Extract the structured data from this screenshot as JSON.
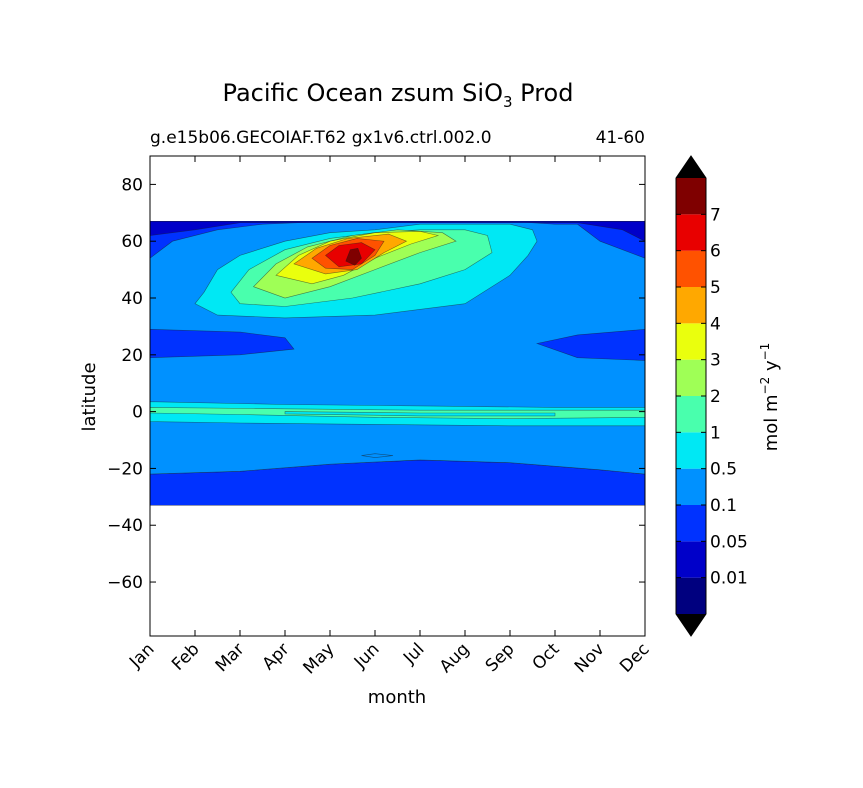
{
  "chart_data": {
    "type": "heatmap",
    "title": "Pacific Ocean zsum SiO",
    "title_subscript": "3",
    "title_suffix": " Prod",
    "subtitle_left": "g.e15b06.GECOIAF.T62 gx1v6.ctrl.002.0",
    "subtitle_right": "41-60",
    "xlabel": "month",
    "ylabel": "latitude",
    "x_ticks": [
      "Jan",
      "Feb",
      "Mar",
      "Apr",
      "May",
      "Jun",
      "Jul",
      "Aug",
      "Sep",
      "Oct",
      "Nov",
      "Dec"
    ],
    "y_ticks": [
      80,
      60,
      40,
      20,
      0,
      -20,
      -40,
      -60
    ],
    "y_tick_labels": [
      "80",
      "60",
      "40",
      "20",
      "0",
      "−20",
      "−40",
      "−60"
    ],
    "xlim": [
      0,
      11
    ],
    "ylim": [
      -79,
      90
    ],
    "data_lat_range": [
      -34,
      67
    ],
    "colorbar": {
      "label_main": "mol m",
      "label_exp1": "−2",
      "label_mid": " y",
      "label_exp2": "−1",
      "levels": [
        0,
        0.01,
        0.05,
        0.1,
        0.5,
        1,
        2,
        3,
        4,
        5,
        6,
        7,
        8
      ],
      "tick_labels": [
        "0.01",
        "0.05",
        "0.1",
        "0.5",
        "1",
        "2",
        "3",
        "4",
        "5",
        "6",
        "7"
      ],
      "colors": [
        "#00007f",
        "#0000c9",
        "#0032ff",
        "#0091ff",
        "#00e8f4",
        "#49ffad",
        "#9fff56",
        "#eaff0d",
        "#ffa800",
        "#ff5200",
        "#e80000",
        "#7f0000"
      ],
      "extend": "both",
      "under_color": "#000000",
      "over_color": "#000000"
    },
    "contour_bands": [
      {
        "level": 1,
        "color": "#0032ff",
        "upper": [
          [
            0,
            -22
          ],
          [
            2,
            -21
          ],
          [
            4,
            -18.5
          ],
          [
            6,
            -17
          ],
          [
            8,
            -18
          ],
          [
            10,
            -20.5
          ],
          [
            11,
            -22
          ]
        ],
        "lower": [
          [
            0,
            -33
          ],
          [
            11,
            -33
          ]
        ]
      },
      {
        "level": 2,
        "color": "#0091ff",
        "upper": [
          [
            0,
            67
          ],
          [
            11,
            67
          ]
        ],
        "lower": [
          [
            0,
            -22
          ],
          [
            2,
            -21
          ],
          [
            4,
            -18.5
          ],
          [
            6,
            -17
          ],
          [
            8,
            -18
          ],
          [
            10,
            -20.5
          ],
          [
            11,
            -22
          ]
        ]
      },
      {
        "level": 1,
        "color": "#0032ff",
        "upper": [
          [
            0,
            29
          ],
          [
            2,
            28
          ],
          [
            3,
            26
          ],
          [
            3.2,
            22
          ],
          [
            2,
            20
          ],
          [
            0,
            19
          ]
        ],
        "lower": []
      },
      {
        "level": 1,
        "color": "#0032ff",
        "upper": [
          [
            8.6,
            24
          ],
          [
            9.5,
            27
          ],
          [
            11,
            29
          ],
          [
            11,
            18
          ],
          [
            9.5,
            19
          ]
        ],
        "lower": []
      },
      {
        "level": 1,
        "color": "#0032ff",
        "upper": [
          [
            0,
            67
          ],
          [
            11,
            67
          ],
          [
            11,
            54
          ],
          [
            10,
            60
          ],
          [
            9.5,
            66
          ],
          [
            9,
            66
          ],
          [
            8,
            67
          ],
          [
            4,
            67
          ],
          [
            2.5,
            66
          ],
          [
            1.5,
            64
          ],
          [
            0.5,
            60
          ],
          [
            0,
            54
          ]
        ],
        "lower": []
      },
      {
        "level": 0,
        "color": "#0000c9",
        "upper": [
          [
            0,
            67
          ],
          [
            11,
            67
          ],
          [
            11,
            60
          ],
          [
            10.5,
            64
          ],
          [
            9.5,
            66.5
          ],
          [
            2,
            66.5
          ],
          [
            1,
            64
          ],
          [
            0,
            62
          ]
        ],
        "lower": []
      },
      {
        "level": 3,
        "color": "#00e8f4",
        "upper": [
          [
            1.2,
            42
          ],
          [
            1.5,
            50
          ],
          [
            2,
            55
          ],
          [
            3,
            60
          ],
          [
            4,
            63
          ],
          [
            5,
            64
          ],
          [
            6,
            66
          ],
          [
            8,
            66
          ],
          [
            8.5,
            64
          ],
          [
            8.6,
            60
          ],
          [
            8.4,
            55
          ],
          [
            8,
            48
          ],
          [
            7,
            38
          ],
          [
            5,
            34
          ],
          [
            3,
            33
          ],
          [
            1.5,
            34
          ],
          [
            1,
            38
          ]
        ],
        "lower": []
      },
      {
        "level": 4,
        "color": "#49ffad",
        "upper": [
          [
            1.8,
            42
          ],
          [
            2.2,
            50
          ],
          [
            3,
            57
          ],
          [
            4,
            61
          ],
          [
            5,
            63
          ],
          [
            6,
            64
          ],
          [
            7,
            64
          ],
          [
            7.5,
            62
          ],
          [
            7.6,
            56
          ],
          [
            7,
            50
          ],
          [
            6,
            45
          ],
          [
            4.5,
            40
          ],
          [
            3,
            37
          ],
          [
            2,
            38
          ]
        ],
        "lower": []
      },
      {
        "level": 5,
        "color": "#9fff56",
        "upper": [
          [
            2.3,
            44
          ],
          [
            2.8,
            52
          ],
          [
            3.5,
            58
          ],
          [
            4.5,
            62
          ],
          [
            5.5,
            64
          ],
          [
            6.5,
            63
          ],
          [
            6.8,
            60
          ],
          [
            6,
            56
          ],
          [
            5,
            50
          ],
          [
            4,
            44
          ],
          [
            3,
            40
          ]
        ],
        "lower": []
      },
      {
        "level": 6,
        "color": "#eaff0d",
        "upper": [
          [
            2.8,
            48
          ],
          [
            3.3,
            55
          ],
          [
            4,
            60
          ],
          [
            5,
            63
          ],
          [
            6,
            63.5
          ],
          [
            6.4,
            62
          ],
          [
            5.8,
            59
          ],
          [
            5,
            54
          ],
          [
            4.3,
            48
          ],
          [
            3.6,
            45
          ]
        ],
        "lower": []
      },
      {
        "level": 7,
        "color": "#ffa800",
        "upper": [
          [
            3.2,
            52
          ],
          [
            3.7,
            57.5
          ],
          [
            4.4,
            61
          ],
          [
            5.3,
            62.5
          ],
          [
            5.7,
            60
          ],
          [
            5.2,
            56
          ],
          [
            4.6,
            50
          ],
          [
            3.9,
            48.5
          ]
        ],
        "lower": []
      },
      {
        "level": 8,
        "color": "#ff5200",
        "upper": [
          [
            3.6,
            54
          ],
          [
            4,
            58.5
          ],
          [
            4.6,
            61
          ],
          [
            5.2,
            60
          ],
          [
            5,
            55
          ],
          [
            4.5,
            50
          ],
          [
            3.9,
            50.5
          ]
        ],
        "lower": []
      },
      {
        "level": 9,
        "color": "#e80000",
        "upper": [
          [
            3.9,
            55
          ],
          [
            4.2,
            58.5
          ],
          [
            4.7,
            59.5
          ],
          [
            5,
            57
          ],
          [
            4.7,
            52
          ],
          [
            4.2,
            51
          ]
        ],
        "lower": []
      },
      {
        "level": 10,
        "color": "#7f0000",
        "upper": [
          [
            4.35,
            53
          ],
          [
            4.45,
            57
          ],
          [
            4.62,
            57.5
          ],
          [
            4.7,
            54
          ],
          [
            4.55,
            51.5
          ]
        ],
        "lower": []
      },
      {
        "level": 3,
        "color": "#00e8f4",
        "upper": [
          [
            0,
            3.5
          ],
          [
            3,
            2.5
          ],
          [
            6,
            2
          ],
          [
            9,
            1.5
          ],
          [
            11,
            1.5
          ],
          [
            11,
            -5
          ],
          [
            8,
            -5
          ],
          [
            5,
            -4.5
          ],
          [
            2,
            -4
          ],
          [
            0,
            -3.5
          ]
        ],
        "lower": []
      },
      {
        "level": 4,
        "color": "#49ffad",
        "upper": [
          [
            0,
            1.5
          ],
          [
            3,
            1
          ],
          [
            6,
            0.5
          ],
          [
            9,
            0.5
          ],
          [
            11,
            0.5
          ],
          [
            11,
            -2
          ],
          [
            8,
            -2.5
          ],
          [
            5,
            -2
          ],
          [
            2,
            -1
          ],
          [
            0,
            -0.5
          ]
        ],
        "lower": []
      },
      {
        "level": 3,
        "color": "#00e8f4",
        "upper": [
          [
            3,
            0
          ],
          [
            6,
            -0.5
          ],
          [
            9,
            -0.5
          ],
          [
            9,
            -1.5
          ],
          [
            6,
            -1.5
          ],
          [
            3,
            -0.8
          ]
        ],
        "lower": []
      },
      {
        "level": 2,
        "color": "#0091ff",
        "upper": [
          [
            4.7,
            -15.5
          ],
          [
            5,
            -14.8
          ],
          [
            5.4,
            -15.5
          ],
          [
            5,
            -16.2
          ]
        ],
        "lower": []
      }
    ]
  }
}
